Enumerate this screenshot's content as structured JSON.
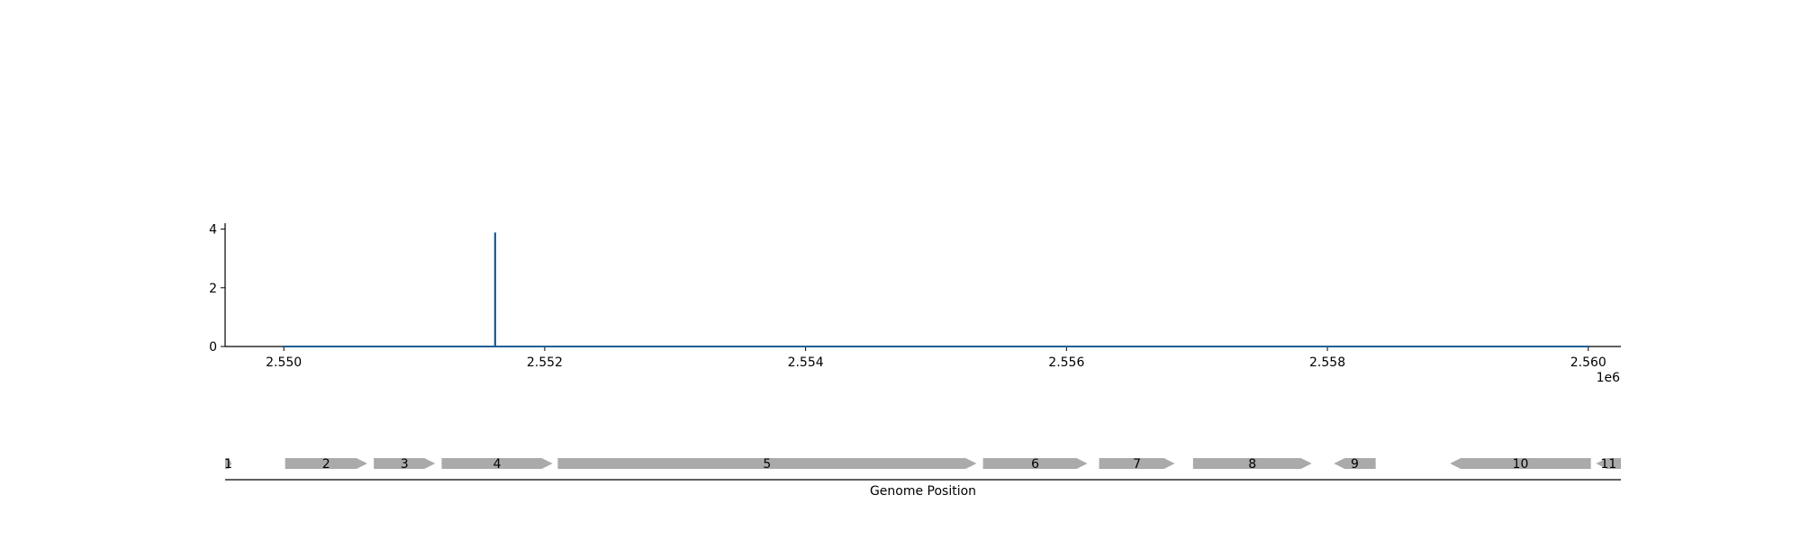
{
  "chart_data": [
    {
      "type": "line",
      "title": "",
      "xlabel": "",
      "ylabel": "",
      "offset_label": "1e6",
      "xlim": [
        2549550,
        2560250
      ],
      "ylim": [
        0,
        4.2
      ],
      "x_ticks": [
        2550000,
        2552000,
        2554000,
        2556000,
        2558000,
        2560000
      ],
      "x_tick_labels": [
        "2.550",
        "2.552",
        "2.554",
        "2.556",
        "2.558",
        "2.560"
      ],
      "y_ticks": [
        0,
        2,
        4
      ],
      "y_tick_labels": [
        "0",
        "2",
        "4"
      ],
      "line_color": "#1f5f95",
      "series": [
        {
          "x": [
            2550000,
            2551619,
            2551619,
            2551621,
            2551621,
            2560000
          ],
          "y": [
            0,
            0,
            3.85,
            3.85,
            0,
            0
          ]
        }
      ],
      "grid": false
    },
    {
      "type": "gene-track",
      "xlabel": "Genome Position",
      "xlim": [
        2549550,
        2560250
      ],
      "feature_color": "#aaaaaa",
      "genes": [
        {
          "label": "1",
          "start": 2549550,
          "end": 2549600,
          "strand": "+"
        },
        {
          "label": "2",
          "start": 2550010,
          "end": 2550640,
          "strand": "+"
        },
        {
          "label": "3",
          "start": 2550690,
          "end": 2551160,
          "strand": "+"
        },
        {
          "label": "4",
          "start": 2551210,
          "end": 2552060,
          "strand": "+"
        },
        {
          "label": "5",
          "start": 2552100,
          "end": 2555310,
          "strand": "+"
        },
        {
          "label": "6",
          "start": 2555360,
          "end": 2556160,
          "strand": "+"
        },
        {
          "label": "7",
          "start": 2556250,
          "end": 2556830,
          "strand": "+"
        },
        {
          "label": "8",
          "start": 2556970,
          "end": 2557880,
          "strand": "+"
        },
        {
          "label": "9",
          "start": 2558050,
          "end": 2558370,
          "strand": "-"
        },
        {
          "label": "10",
          "start": 2558940,
          "end": 2560020,
          "strand": "-"
        },
        {
          "label": "11",
          "start": 2560060,
          "end": 2560560,
          "strand": "-"
        }
      ]
    }
  ]
}
